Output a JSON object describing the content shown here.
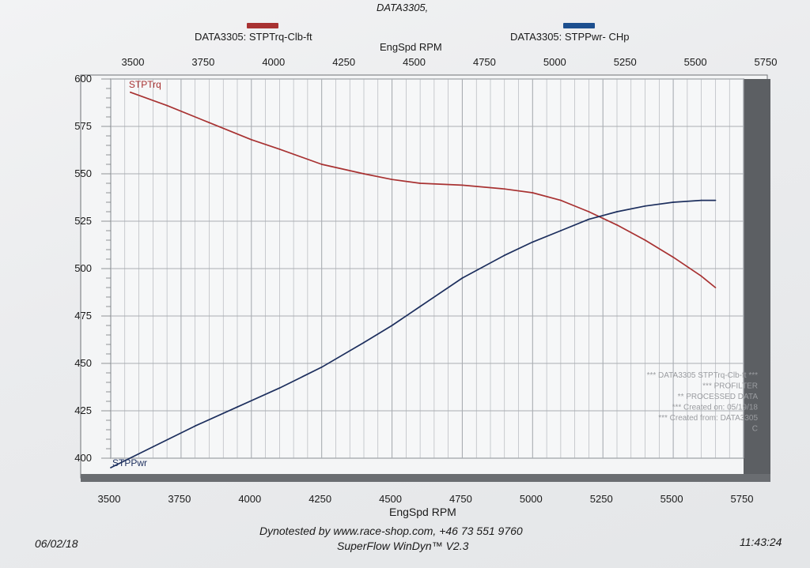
{
  "header": {
    "top_title": "DATA3305,",
    "legend_torque": "DATA3305: STPTrq-Clb-ft",
    "legend_power": "DATA3305: STPPwr- CHp",
    "top_axis_label": "EngSpd  RPM"
  },
  "footer": {
    "date": "06/02/18",
    "time": "11:43:24",
    "dyno_line": "Dynotested by www.race-shop.com, +46 73 551 9760",
    "software_line": "SuperFlow WinDyn™ V2.3"
  },
  "watermark": [
    "*** DATA3305  STPTrq-Clb-ft ***",
    "*** PROFILTER",
    "** PROCESSED DATA",
    "*** Created on: 05/19/18",
    "*** Created from: DATA3305",
    "C"
  ],
  "colors": {
    "torque": "#a83232",
    "power": "#1d2f5e",
    "grid": "#a9adb2"
  },
  "chart_data": {
    "type": "line",
    "xlabel": "EngSpd  RPM",
    "xlim": [
      3500,
      5750
    ],
    "ylim": [
      400,
      600
    ],
    "x_ticks": [
      3500,
      3750,
      4000,
      4250,
      4500,
      4750,
      5000,
      5250,
      5500,
      5750
    ],
    "top_x_ticks": [
      3500,
      3750,
      4000,
      4250,
      4500,
      4750,
      5000,
      5250,
      5500,
      5750
    ],
    "y_ticks": [
      400,
      425,
      450,
      475,
      500,
      525,
      550,
      575,
      600
    ],
    "series": [
      {
        "name": "STPTrq",
        "color": "#a83232",
        "x": [
          3570,
          3700,
          3850,
          4000,
          4100,
          4250,
          4400,
          4500,
          4600,
          4750,
          4900,
          5000,
          5100,
          5200,
          5300,
          5400,
          5500,
          5600,
          5650
        ],
        "y": [
          593,
          586,
          577,
          568,
          563,
          555,
          550,
          547,
          545,
          544,
          542,
          540,
          536,
          530,
          523,
          515,
          506,
          496,
          490
        ]
      },
      {
        "name": "STPPwr",
        "color": "#1d2f5e",
        "x": [
          3500,
          3650,
          3800,
          3950,
          4100,
          4250,
          4400,
          4500,
          4600,
          4750,
          4900,
          5000,
          5100,
          5200,
          5300,
          5400,
          5500,
          5600,
          5650
        ],
        "y": [
          395,
          406,
          417,
          427,
          437,
          448,
          461,
          470,
          480,
          495,
          507,
          514,
          520,
          526,
          530,
          533,
          535,
          536,
          536
        ]
      }
    ]
  }
}
